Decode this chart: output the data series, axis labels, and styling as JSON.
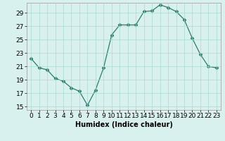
{
  "x": [
    0,
    1,
    2,
    3,
    4,
    5,
    6,
    7,
    8,
    9,
    10,
    11,
    12,
    13,
    14,
    15,
    16,
    17,
    18,
    19,
    20,
    21,
    22,
    23
  ],
  "y": [
    22.2,
    20.8,
    20.5,
    19.2,
    18.8,
    17.8,
    17.3,
    15.2,
    17.5,
    20.8,
    25.7,
    27.2,
    27.2,
    27.2,
    29.2,
    29.3,
    30.2,
    29.8,
    29.2,
    28.0,
    25.2,
    22.8,
    21.0,
    20.8
  ],
  "line_color": "#2d7d6e",
  "marker": "D",
  "marker_size": 2.5,
  "background_color": "#d8f0ee",
  "grid_color": "#aad8d4",
  "xlabel": "Humidex (Indice chaleur)",
  "xlim": [
    -0.5,
    23.5
  ],
  "ylim": [
    14.5,
    30.5
  ],
  "yticks": [
    15,
    17,
    19,
    21,
    23,
    25,
    27,
    29
  ],
  "xticks": [
    0,
    1,
    2,
    3,
    4,
    5,
    6,
    7,
    8,
    9,
    10,
    11,
    12,
    13,
    14,
    15,
    16,
    17,
    18,
    19,
    20,
    21,
    22,
    23
  ],
  "xlabel_fontsize": 7,
  "tick_fontsize": 6.5
}
